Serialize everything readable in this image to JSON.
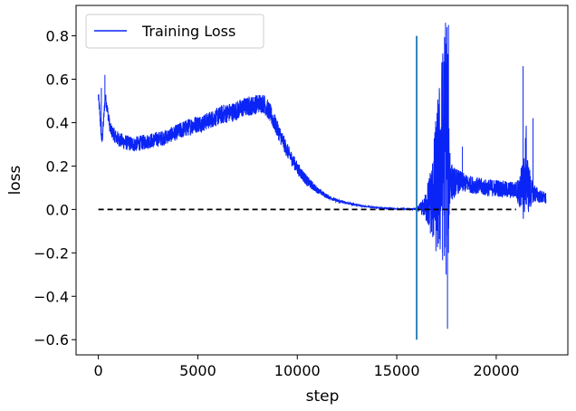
{
  "chart_data": {
    "type": "line",
    "xlabel": "step",
    "ylabel": "loss",
    "xlim": [
      -1120,
      23600
    ],
    "ylim": [
      -0.67,
      0.94
    ],
    "x_ticks": [
      0,
      5000,
      10000,
      15000,
      20000
    ],
    "y_ticks": [
      -0.6,
      -0.4,
      -0.2,
      0.0,
      0.2,
      0.4,
      0.6,
      0.8
    ],
    "y_tick_labels": [
      "−0.6",
      "−0.4",
      "−0.2",
      "0.0",
      "0.2",
      "0.4",
      "0.6",
      "0.8"
    ],
    "legend": {
      "placement": "top-left",
      "entries": [
        "Training Loss"
      ]
    },
    "grid": false,
    "series": [
      {
        "name": "Training Loss",
        "color": "#0a24f5",
        "style": "noisy-line",
        "x": [
          0,
          60,
          120,
          180,
          260,
          340,
          420,
          600,
          900,
          1300,
          1800,
          2300,
          2800,
          3300,
          3800,
          4300,
          4800,
          5300,
          5800,
          6300,
          6800,
          7300,
          7800,
          8100,
          8300,
          8600,
          9000,
          9500,
          10000,
          10500,
          11000,
          11500,
          12000,
          12500,
          13000,
          13500,
          14000,
          14500,
          15000,
          15500,
          16000,
          16400,
          16800,
          17000,
          17200,
          17400,
          17500,
          17600,
          17700,
          17800,
          18000,
          18500,
          19000,
          19500,
          20000,
          20500,
          21000,
          21200,
          21300,
          21400,
          21500,
          21600,
          21700,
          21800,
          22000,
          22200,
          22500
        ],
        "y": [
          0.52,
          0.46,
          0.38,
          0.31,
          0.4,
          0.52,
          0.48,
          0.37,
          0.33,
          0.31,
          0.3,
          0.31,
          0.32,
          0.33,
          0.35,
          0.37,
          0.39,
          0.4,
          0.42,
          0.44,
          0.45,
          0.47,
          0.48,
          0.49,
          0.49,
          0.45,
          0.37,
          0.27,
          0.19,
          0.13,
          0.09,
          0.06,
          0.04,
          0.03,
          0.02,
          0.013,
          0.008,
          0.005,
          0.003,
          0.002,
          0.002,
          0.01,
          0.05,
          0.12,
          0.2,
          0.3,
          0.35,
          0.2,
          0.15,
          0.12,
          0.13,
          0.12,
          0.11,
          0.1,
          0.1,
          0.09,
          0.09,
          0.08,
          0.09,
          0.1,
          0.2,
          0.1,
          0.09,
          0.08,
          0.07,
          0.06,
          0.05
        ],
        "noise": [
          0.03,
          0.03,
          0.03,
          0.03,
          0.03,
          0.03,
          0.03,
          0.03,
          0.035,
          0.035,
          0.035,
          0.035,
          0.035,
          0.035,
          0.035,
          0.04,
          0.04,
          0.04,
          0.04,
          0.045,
          0.045,
          0.045,
          0.045,
          0.045,
          0.045,
          0.045,
          0.04,
          0.035,
          0.03,
          0.025,
          0.015,
          0.01,
          0.008,
          0.005,
          0.004,
          0.003,
          0.002,
          0.002,
          0.002,
          0.002,
          0.005,
          0.05,
          0.2,
          0.35,
          0.45,
          0.55,
          0.5,
          0.45,
          0.1,
          0.08,
          0.06,
          0.04,
          0.04,
          0.04,
          0.04,
          0.04,
          0.04,
          0.08,
          0.15,
          0.15,
          0.2,
          0.12,
          0.1,
          0.05,
          0.04,
          0.03,
          0.03
        ],
        "spikes": [
          {
            "x": 17450,
            "y": 0.86
          },
          {
            "x": 17520,
            "y": 0.84
          },
          {
            "x": 17600,
            "y": 0.85
          },
          {
            "x": 17550,
            "y": -0.55
          },
          {
            "x": 17480,
            "y": -0.3
          },
          {
            "x": 17300,
            "y": -0.2
          },
          {
            "x": 18300,
            "y": 0.29
          },
          {
            "x": 21350,
            "y": 0.66
          },
          {
            "x": 21850,
            "y": 0.42
          },
          {
            "x": 150,
            "y": 0.56
          },
          {
            "x": 330,
            "y": 0.62
          }
        ]
      }
    ],
    "reference_lines": [
      {
        "orientation": "horizontal",
        "y": 0.0,
        "x_from": 0,
        "x_to": 21000,
        "color": "#000000",
        "dash": true
      },
      {
        "orientation": "vertical",
        "x": 16000,
        "y_from": -0.6,
        "y_to": 0.8,
        "color": "#1f77b4"
      }
    ]
  }
}
